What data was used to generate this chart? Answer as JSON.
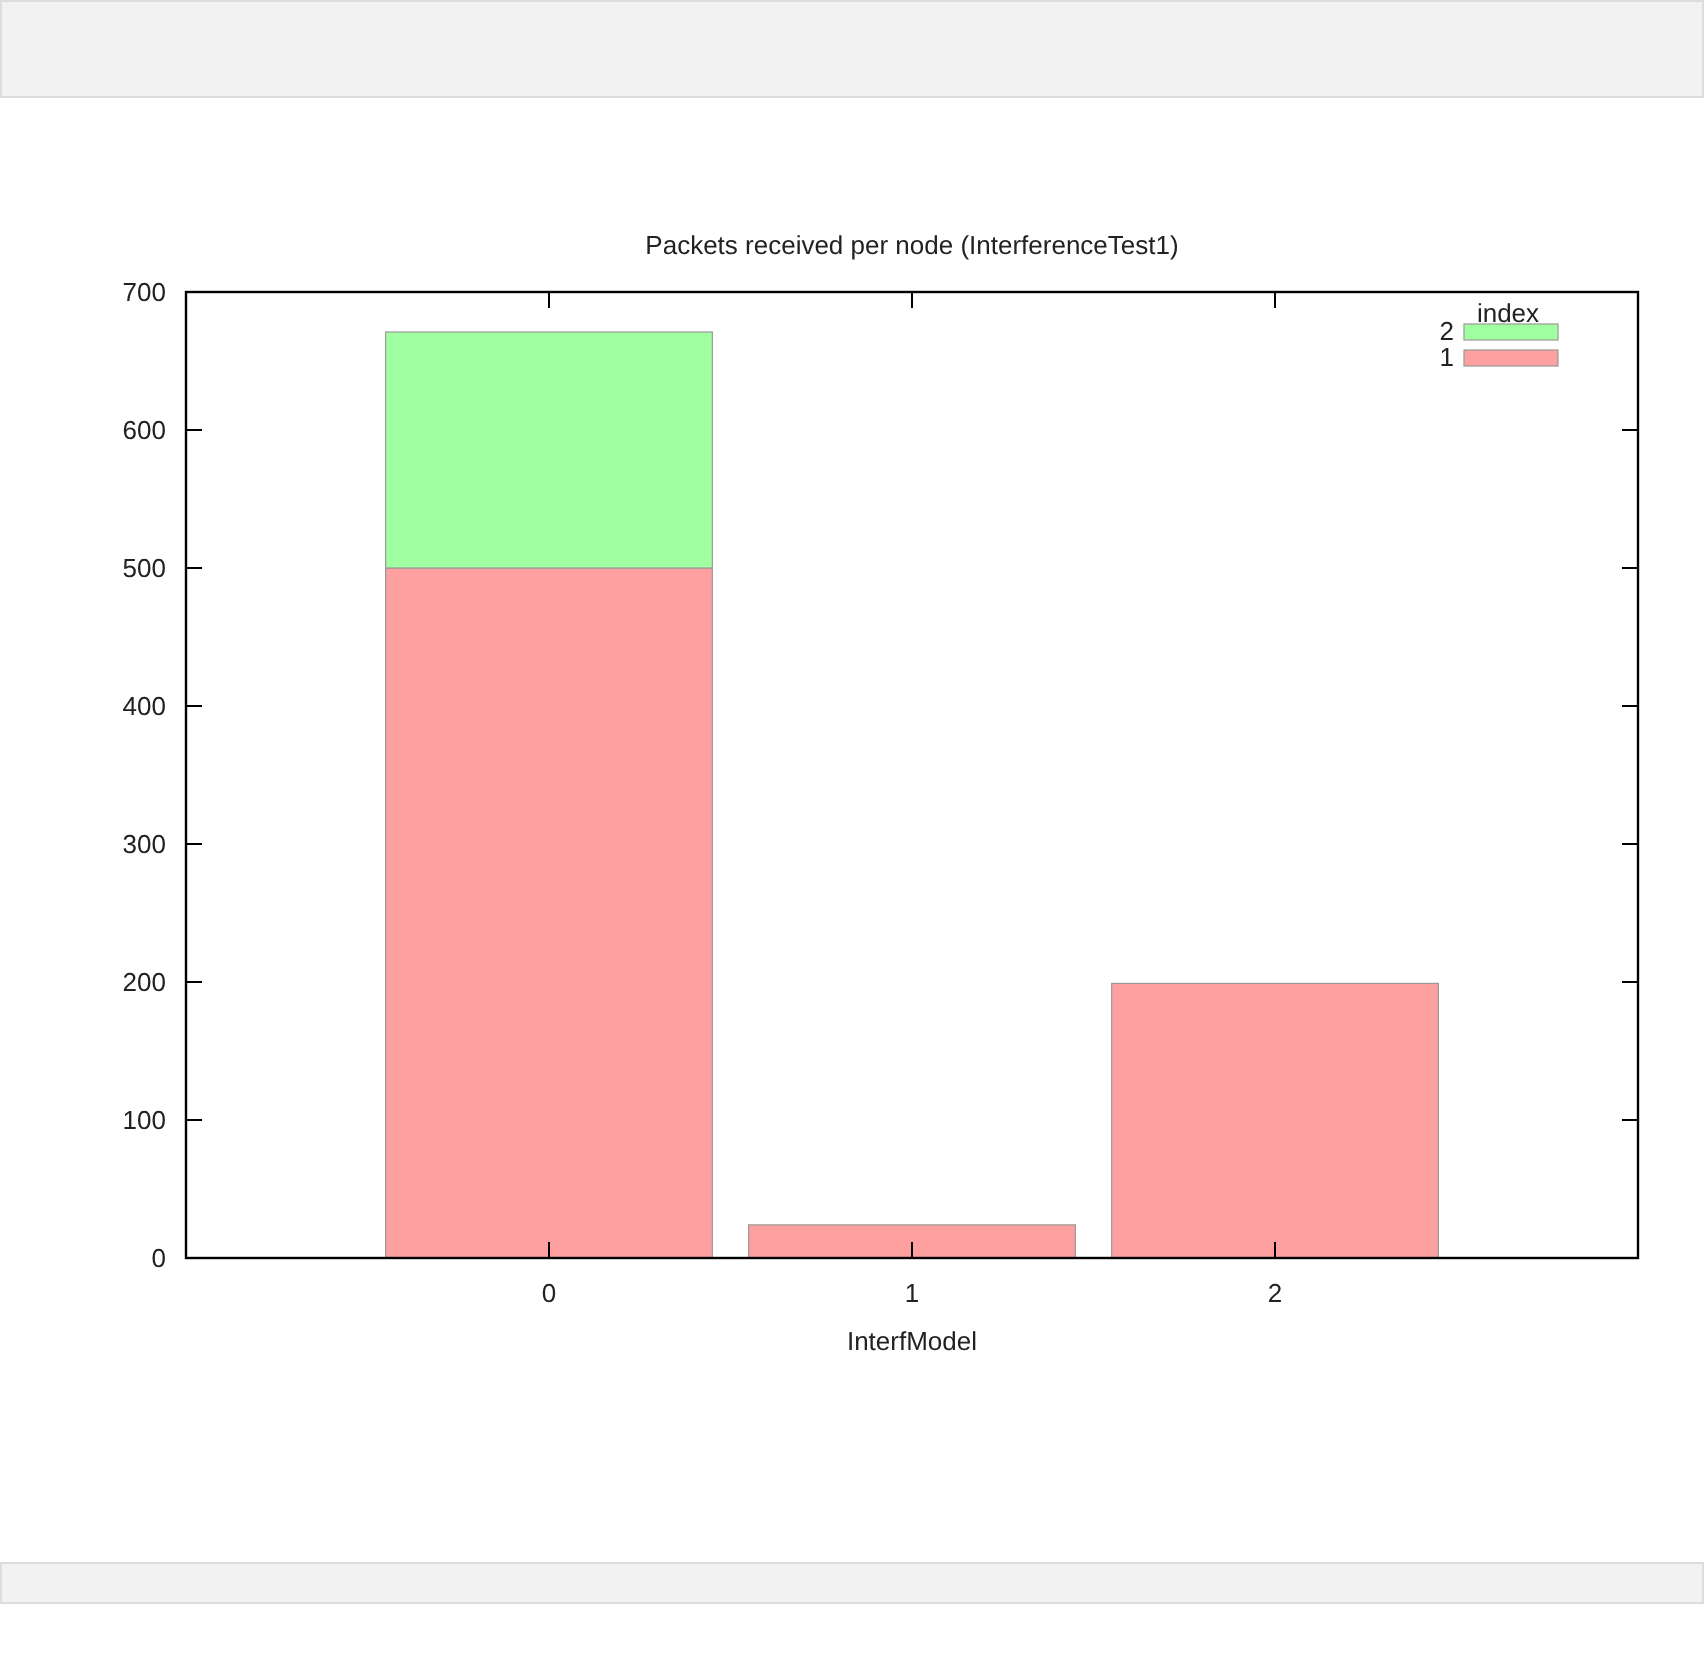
{
  "chart_data": {
    "type": "bar",
    "title": "Packets received per node (InterferenceTest1)",
    "xlabel": "InterfModel",
    "categories": [
      "0",
      "1",
      "2"
    ],
    "stacked": true,
    "legend": "top right",
    "legend_title": "index",
    "series": [
      {
        "name": "1",
        "color": "#ffa0a0",
        "values": [
          500,
          24,
          199
        ]
      },
      {
        "name": "2",
        "color": "#a0ffa0",
        "values": [
          171,
          null,
          null
        ]
      }
    ],
    "ylim": [
      0,
      700
    ],
    "yticks": [
      0,
      100,
      200,
      300,
      400,
      500,
      600,
      700
    ],
    "grid": false
  }
}
